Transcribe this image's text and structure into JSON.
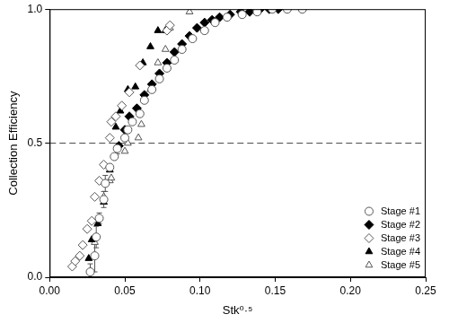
{
  "chart_data": {
    "type": "scatter",
    "x_label": "Stk⁰·⁵",
    "y_label": "Collection Efficiency",
    "xlim": [
      0,
      0.25
    ],
    "xticks": [
      {
        "value": 0,
        "label": "0.00"
      },
      {
        "value": 0.05,
        "label": "0.05"
      },
      {
        "value": 0.1,
        "label": "0.10"
      },
      {
        "value": 0.15,
        "label": "0.15"
      },
      {
        "value": 0.2,
        "label": "0.20"
      },
      {
        "value": 0.25,
        "label": "0.25"
      }
    ],
    "ylim": [
      0,
      1
    ],
    "yticks": [
      {
        "value": 0,
        "label": "0.0"
      },
      {
        "value": 0.5,
        "label": "0.5"
      },
      {
        "value": 1,
        "label": "1.0"
      }
    ],
    "grid": false,
    "legend": "lower right",
    "hlines": [
      {
        "value": 0.5,
        "line_style": "dashed"
      }
    ],
    "series": [
      {
        "name": "Stage #1",
        "color": "#555555",
        "marker": "circle-open",
        "x": [
          0.027,
          0.03,
          0.031,
          0.033,
          0.036,
          0.037,
          0.04,
          0.043,
          0.045,
          0.05,
          0.052,
          0.055,
          0.06,
          0.063,
          0.068,
          0.073,
          0.078,
          0.083,
          0.088,
          0.095,
          0.103,
          0.11,
          0.118,
          0.128,
          0.138,
          0.148,
          0.158,
          0.168
        ],
        "values": [
          0.02,
          0.08,
          0.15,
          0.22,
          0.29,
          0.35,
          0.41,
          0.45,
          0.48,
          0.52,
          0.55,
          0.58,
          0.61,
          0.66,
          0.7,
          0.74,
          0.78,
          0.81,
          0.85,
          0.89,
          0.92,
          0.95,
          0.97,
          0.98,
          0.99,
          1.0,
          1.0,
          1.0
        ],
        "errors": [
          0.03,
          0.06,
          0.04,
          0.02,
          0.03,
          0.03,
          0.01,
          null,
          0.02,
          null,
          null,
          null,
          0.01,
          null,
          null,
          0.01,
          null,
          null,
          null,
          null,
          null,
          null,
          null,
          null,
          null,
          null,
          null,
          null
        ]
      },
      {
        "name": "Stage #2",
        "color": "#000000",
        "marker": "diamond",
        "x": [
          0.046,
          0.05,
          0.053,
          0.058,
          0.063,
          0.068,
          0.073,
          0.078,
          0.083,
          0.088,
          0.093,
          0.098,
          0.103,
          0.108,
          0.113,
          0.12,
          0.127,
          0.133,
          0.14,
          0.146,
          0.152
        ],
        "values": [
          0.49,
          0.55,
          0.6,
          0.63,
          0.68,
          0.72,
          0.76,
          0.8,
          0.84,
          0.87,
          0.9,
          0.93,
          0.95,
          0.96,
          0.97,
          0.98,
          0.99,
          0.99,
          1.0,
          1.0,
          1.0
        ]
      },
      {
        "name": "Stage #3",
        "color": "#555555",
        "marker": "diamond-open",
        "x": [
          0.015,
          0.017,
          0.02,
          0.022,
          0.025,
          0.028,
          0.03,
          0.033,
          0.036,
          0.04,
          0.041,
          0.044,
          0.048,
          0.053,
          0.06,
          0.078,
          0.08
        ],
        "values": [
          0.04,
          0.06,
          0.08,
          0.12,
          0.18,
          0.21,
          0.3,
          0.36,
          0.42,
          0.52,
          0.58,
          0.6,
          0.64,
          0.69,
          0.79,
          0.92,
          0.94
        ]
      },
      {
        "name": "Stage #4",
        "color": "#000000",
        "marker": "triangle",
        "x": [
          0.026,
          0.028,
          0.032,
          0.036,
          0.04,
          0.044,
          0.047,
          0.052,
          0.057,
          0.062,
          0.067,
          0.072,
          0.077
        ],
        "values": [
          0.07,
          0.14,
          0.2,
          0.28,
          0.4,
          0.56,
          0.62,
          0.7,
          0.71,
          0.8,
          0.86,
          0.92,
          0.92
        ]
      },
      {
        "name": "Stage #5",
        "color": "#555555",
        "marker": "triangle-open",
        "x": [
          0.03,
          0.036,
          0.04,
          0.041,
          0.05,
          0.052,
          0.059,
          0.061,
          0.067,
          0.072,
          0.077,
          0.08,
          0.093
        ],
        "values": [
          0.13,
          0.3,
          0.36,
          0.37,
          0.47,
          0.5,
          0.52,
          0.57,
          0.7,
          0.8,
          0.85,
          0.93,
          0.99
        ]
      }
    ]
  }
}
